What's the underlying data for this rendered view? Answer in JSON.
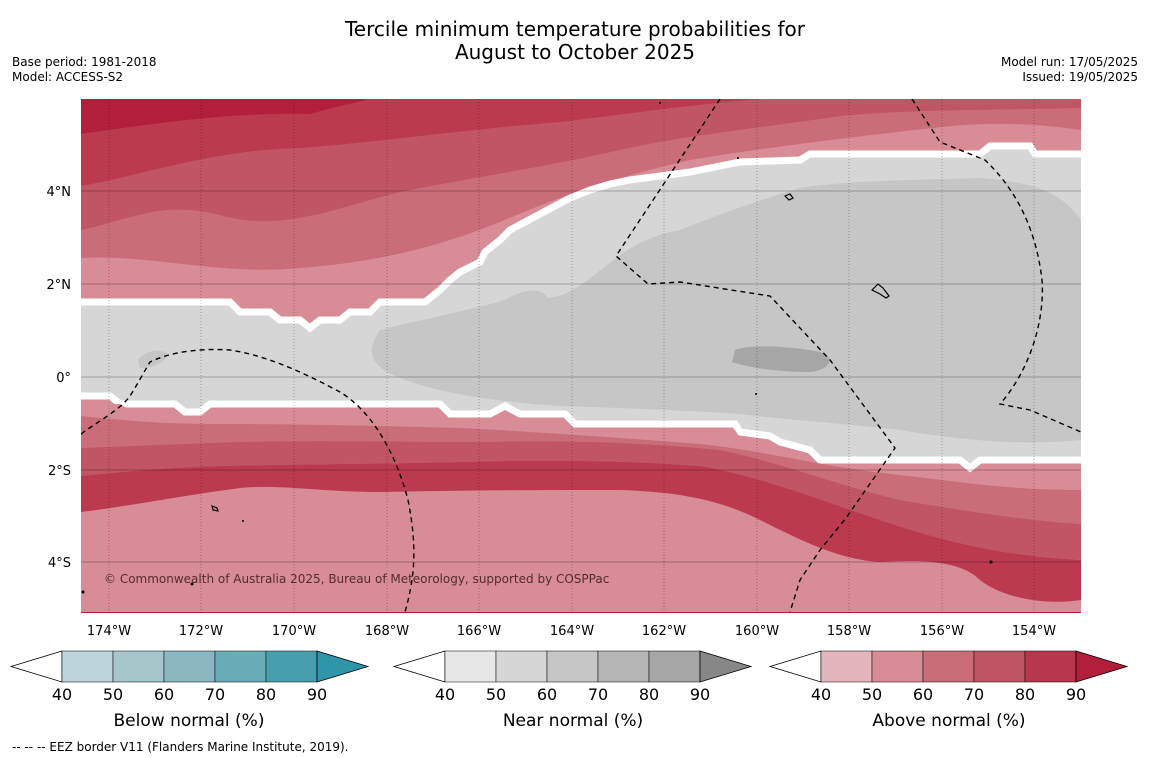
{
  "header": {
    "title_line1": "Tercile minimum temperature probabilities for",
    "title_line2": "August to October 2025",
    "base_period": "Base period: 1981-2018",
    "model": "Model: ACCESS-S2",
    "model_run": "Model run: 17/05/2025",
    "issued": "Issued: 19/05/2025"
  },
  "map": {
    "lat_labels": [
      "4°N",
      "2°N",
      "0°",
      "2°S",
      "4°S"
    ],
    "lon_labels": [
      "174°W",
      "172°W",
      "170°W",
      "168°W",
      "166°W",
      "164°W",
      "162°W",
      "160°W",
      "158°W",
      "156°W",
      "154°W"
    ],
    "copyright": "© Commonwealth of Australia 2025, Bureau of Meteorology, supported by COSPPac"
  },
  "legend": {
    "ticks": [
      "40",
      "50",
      "60",
      "70",
      "80",
      "90"
    ],
    "below": {
      "label": "Below normal (%)",
      "colors": [
        "#bdd4db",
        "#a6c6cc",
        "#8bb7c3",
        "#6aabb8",
        "#479fae",
        "#2f95a8"
      ]
    },
    "near": {
      "label": "Near normal (%)",
      "colors": [
        "#e7e7e7",
        "#d6d6d6",
        "#c6c6c6",
        "#b5b5b5",
        "#a6a6a6",
        "#878787"
      ]
    },
    "above": {
      "label": "Above normal (%)",
      "colors": [
        "#e3b6bd",
        "#d78c96",
        "#ca6d79",
        "#c05563",
        "#b8374c",
        "#b21f3b"
      ]
    }
  },
  "footnote": "--  --  -- EEZ border V11 (Flanders Marine Institute, 2019)."
}
